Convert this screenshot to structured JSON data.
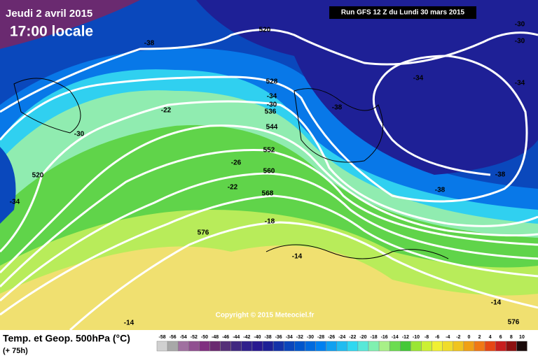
{
  "header": {
    "date": "Jeudi 2 avril 2015",
    "time": "17:00 locale",
    "run": "Run GFS 12 Z du Lundi 30 mars 2015"
  },
  "map_labels": [
    "-38",
    "520",
    "-30",
    "-30",
    "-34",
    "-34",
    "528",
    "-34",
    "-30",
    "536",
    "-38",
    "-22",
    "-30",
    "544",
    "552",
    "-26",
    "560",
    "520",
    "-38",
    "-22",
    "568",
    "-38",
    "-34",
    "576",
    "-18",
    "-14",
    "-14",
    "-14",
    "576"
  ],
  "copyright": "Copyright © 2015 Meteociel.fr",
  "footer": {
    "title": "Temp. et Geop. 500hPa (°C)",
    "lead": "(+ 75h)"
  },
  "legend": [
    {
      "label": "-58",
      "color": "#d0d0d0"
    },
    {
      "label": "-56",
      "color": "#a8a8a8"
    },
    {
      "label": "-54",
      "color": "#a070a0"
    },
    {
      "label": "-52",
      "color": "#905090"
    },
    {
      "label": "-50",
      "color": "#803080"
    },
    {
      "label": "-48",
      "color": "#6a2a70"
    },
    {
      "label": "-46",
      "color": "#553078"
    },
    {
      "label": "-44",
      "color": "#402880"
    },
    {
      "label": "-42",
      "color": "#30208c"
    },
    {
      "label": "-40",
      "color": "#281890"
    },
    {
      "label": "-38",
      "color": "#1e2096"
    },
    {
      "label": "-36",
      "color": "#1432a8"
    },
    {
      "label": "-34",
      "color": "#0a46bc"
    },
    {
      "label": "-32",
      "color": "#0056cc"
    },
    {
      "label": "-30",
      "color": "#006ade"
    },
    {
      "label": "-28",
      "color": "#0080f0"
    },
    {
      "label": "-26",
      "color": "#10a0f0"
    },
    {
      "label": "-24",
      "color": "#20bcf0"
    },
    {
      "label": "-22",
      "color": "#30d8f0"
    },
    {
      "label": "-20",
      "color": "#58e8d8"
    },
    {
      "label": "-18",
      "color": "#80f0b0"
    },
    {
      "label": "-16",
      "color": "#a8f088"
    },
    {
      "label": "-14",
      "color": "#6cdc50"
    },
    {
      "label": "-12",
      "color": "#44c838"
    },
    {
      "label": "-10",
      "color": "#9ae634"
    },
    {
      "label": "-8",
      "color": "#ccf034"
    },
    {
      "label": "-6",
      "color": "#f0f034"
    },
    {
      "label": "-4",
      "color": "#f0dc2a"
    },
    {
      "label": "-2",
      "color": "#f0c41e"
    },
    {
      "label": "0",
      "color": "#f0a014"
    },
    {
      "label": "2",
      "color": "#f07814"
    },
    {
      "label": "4",
      "color": "#e64614"
    },
    {
      "label": "6",
      "color": "#c81e1e"
    },
    {
      "label": "8",
      "color": "#8c1010"
    },
    {
      "label": "10",
      "color": "#1a0a0a"
    }
  ]
}
